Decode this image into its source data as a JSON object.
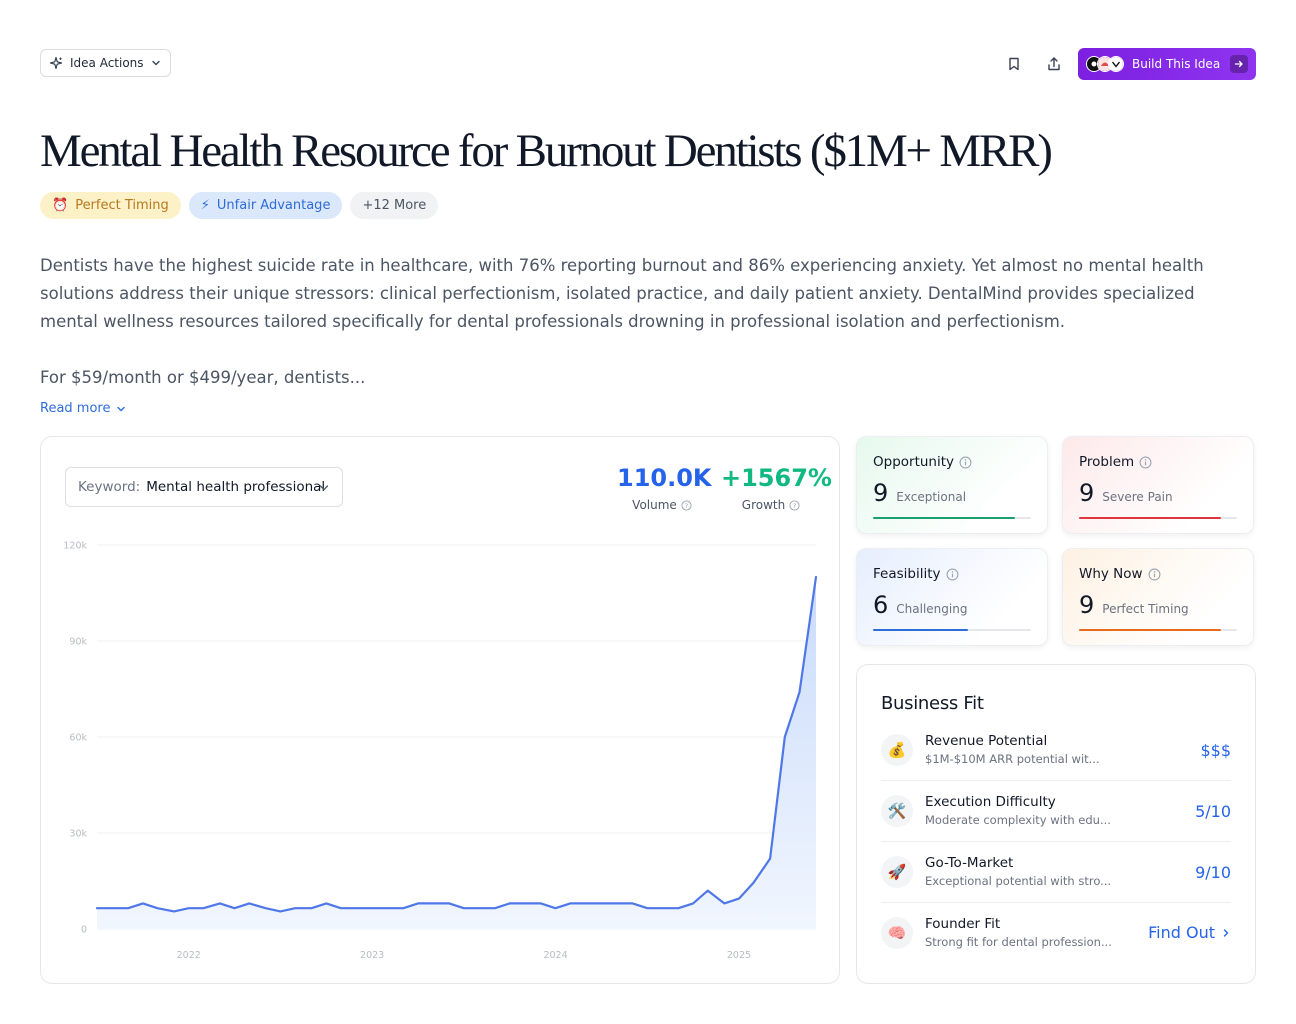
{
  "header": {
    "idea_actions_label": "Idea Actions",
    "build_label": "Build This Idea"
  },
  "title": "Mental Health Resource for Burnout Dentists ($1M+ MRR)",
  "tags": [
    {
      "icon": "alarm-clock-icon",
      "label": "Perfect Timing"
    },
    {
      "icon": "lightning-icon",
      "label": "Unfair Advantage"
    },
    {
      "label": "+12 More"
    }
  ],
  "description": "Dentists have the highest suicide rate in healthcare, with 76% reporting burnout and 86% experiencing anxiety. Yet almost no mental health solutions address their unique stressors: clinical perfectionism, isolated practice, and daily patient anxiety. DentalMind provides specialized mental wellness resources tailored specifically for dental professionals drowning in professional isolation and perfectionism.",
  "description_more": "For $59/month or $499/year, dentists...",
  "read_more": "Read more",
  "trend": {
    "keyword_label": "Keyword:",
    "keyword_value": "Mental health professional",
    "volume_value": "110.0K",
    "volume_label": "Volume",
    "growth_value": "+1567%",
    "growth_label": "Growth"
  },
  "chart_data": {
    "type": "area",
    "title": "",
    "xlabel": "",
    "ylabel": "",
    "ylim": [
      0,
      120000
    ],
    "y_ticks": [
      0,
      30000,
      60000,
      90000,
      120000
    ],
    "y_tick_labels": [
      "0",
      "30k",
      "60k",
      "90k",
      "120k"
    ],
    "x_tick_labels": [
      "2022",
      "2023",
      "2024",
      "2025"
    ],
    "x_tick_positions": [
      2022,
      2023,
      2024,
      2025
    ],
    "x_range": [
      2021.5,
      2025.42
    ],
    "x": [
      2021.5,
      2021.58,
      2021.67,
      2021.75,
      2021.83,
      2021.92,
      2022.0,
      2022.08,
      2022.17,
      2022.25,
      2022.33,
      2022.42,
      2022.5,
      2022.58,
      2022.67,
      2022.75,
      2022.83,
      2022.92,
      2023.0,
      2023.08,
      2023.17,
      2023.25,
      2023.33,
      2023.42,
      2023.5,
      2023.58,
      2023.67,
      2023.75,
      2023.83,
      2023.92,
      2024.0,
      2024.08,
      2024.17,
      2024.25,
      2024.33,
      2024.42,
      2024.5,
      2024.58,
      2024.67,
      2024.75,
      2024.83,
      2024.92,
      2025.0,
      2025.08,
      2025.17,
      2025.25,
      2025.33,
      2025.42
    ],
    "series": [
      {
        "values": [
          6500,
          6500,
          6500,
          8000,
          6500,
          5500,
          6500,
          6500,
          8000,
          6500,
          8000,
          6500,
          5500,
          6500,
          6500,
          8000,
          6500,
          6500,
          6500,
          6500,
          6500,
          8000,
          8000,
          8000,
          6500,
          6500,
          6500,
          8000,
          8000,
          8000,
          6500,
          8000,
          8000,
          8000,
          8000,
          8000,
          6500,
          6500,
          6500,
          8000,
          12000,
          8000,
          9500,
          14500,
          22000,
          60000,
          74000,
          110000
        ]
      }
    ],
    "colors": {
      "line": "#4f77e8",
      "fill_top": "#c9dbfb",
      "fill_bottom": "#f1f6fe",
      "grid": "#eef0f3"
    }
  },
  "scores": [
    {
      "label": "Opportunity",
      "value": "9",
      "desc": "Exceptional",
      "fraction": 0.9,
      "color": "#1a9f6e"
    },
    {
      "label": "Problem",
      "value": "9",
      "desc": "Severe Pain",
      "fraction": 0.9,
      "color": "#e0353b"
    },
    {
      "label": "Feasibility",
      "value": "6",
      "desc": "Challenging",
      "fraction": 0.6,
      "color": "#2e6cd8"
    },
    {
      "label": "Why Now",
      "value": "9",
      "desc": "Perfect Timing",
      "fraction": 0.9,
      "color": "#e86a1c"
    }
  ],
  "business_fit": {
    "title": "Business Fit",
    "items": [
      {
        "icon": "money-bag-icon",
        "name": "Revenue Potential",
        "sub": "$1M-$10M ARR potential wit...",
        "score": "$$$"
      },
      {
        "icon": "tools-icon",
        "name": "Execution Difficulty",
        "sub": "Moderate complexity with edu...",
        "score": "5/10"
      },
      {
        "icon": "rocket-icon",
        "name": "Go-To-Market",
        "sub": "Exceptional potential with stro...",
        "score": "9/10"
      },
      {
        "icon": "brain-icon",
        "name": "Founder Fit",
        "sub": "Strong fit for dental profession...",
        "score": "Find Out"
      }
    ]
  }
}
